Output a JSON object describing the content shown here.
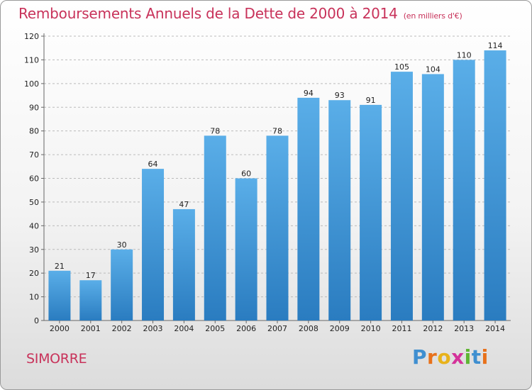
{
  "header": {
    "title": "Remboursements Annuels de la Dette de 2000 à 2014",
    "unit": "(en milliers d'€)"
  },
  "commune": "SIMORRE",
  "logo": {
    "letters": [
      "P",
      "r",
      "o",
      "x",
      "i",
      "t",
      "i"
    ]
  },
  "colors": {
    "title": "#c8325a",
    "bar_top": "#5aaee8",
    "bar_bottom": "#2a7cc0",
    "grid": "#bbbbbb"
  },
  "chart_data": {
    "type": "bar",
    "title": "Remboursements Annuels de la Dette de 2000 à 2014",
    "xlabel": "",
    "ylabel": "",
    "categories": [
      "2000",
      "2001",
      "2002",
      "2003",
      "2004",
      "2005",
      "2006",
      "2007",
      "2008",
      "2009",
      "2010",
      "2011",
      "2012",
      "2013",
      "2014"
    ],
    "values": [
      21,
      17,
      30,
      64,
      47,
      78,
      60,
      78,
      94,
      93,
      91,
      105,
      104,
      110,
      114
    ],
    "ylim": [
      0,
      120
    ],
    "yticks": [
      0,
      10,
      20,
      30,
      40,
      50,
      60,
      70,
      80,
      90,
      100,
      110,
      120
    ],
    "grid": true
  }
}
